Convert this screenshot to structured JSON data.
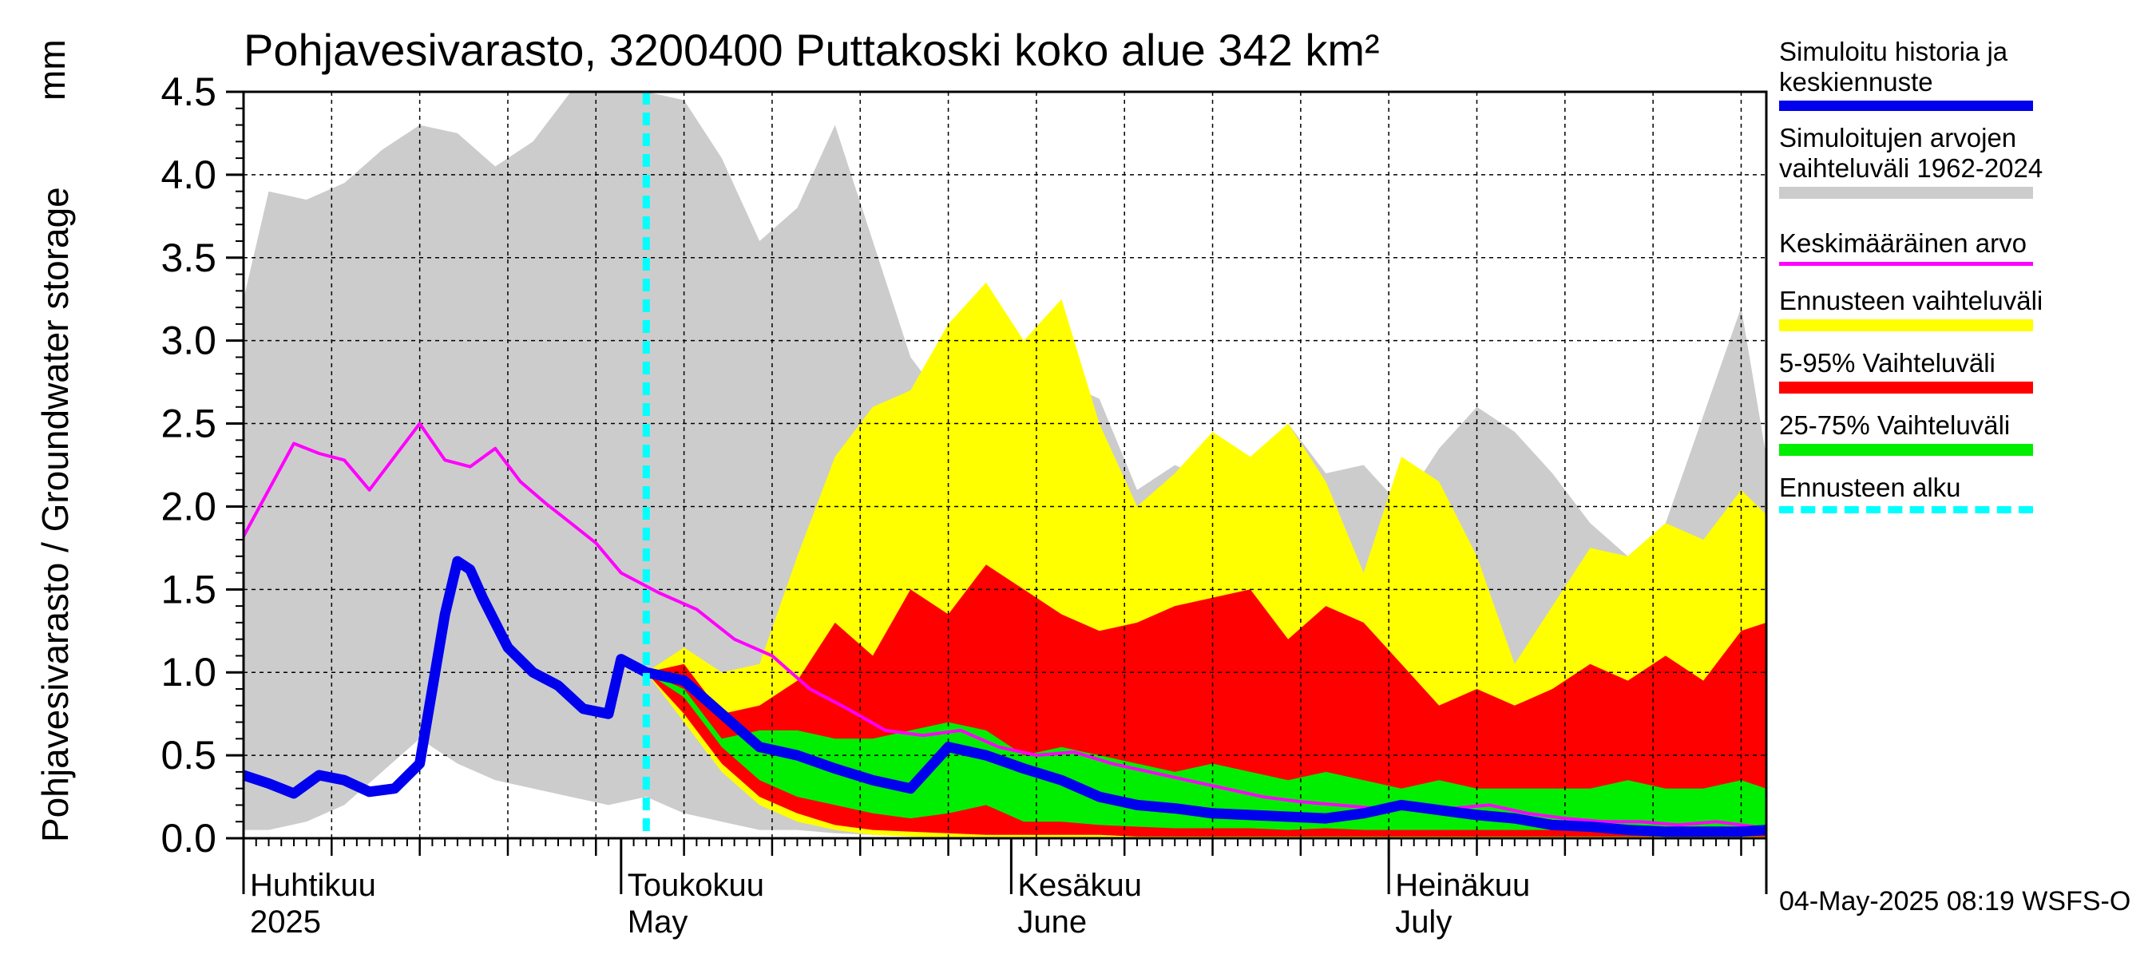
{
  "title": "Pohjavesivarasto, 3200400 Puttakoski koko alue 342 km²",
  "unit_label": "mm",
  "y_axis_label": "Pohjavesivarasto / Groundwater storage",
  "footer": "04-May-2025 08:19 WSFS-O",
  "legend": [
    {
      "label": "Simuloitu historia ja\nkeskiennuste",
      "color": "#0000ee",
      "style": "thick"
    },
    {
      "label": "Simuloitujen arvojen\nvaihteluväli 1962-2024",
      "color": "#cccccc",
      "style": "band"
    },
    {
      "label": "Keskimääräinen arvo",
      "color": "#ff00ff",
      "style": "thin"
    },
    {
      "label": "Ennusteen vaihteluväli",
      "color": "#ffff00",
      "style": "band"
    },
    {
      "label": "5-95% Vaihteluväli",
      "color": "#ff0000",
      "style": "band"
    },
    {
      "label": "25-75% Vaihteluväli",
      "color": "#00ee00",
      "style": "band"
    },
    {
      "label": "Ennusteen alku",
      "color": "#00ffff",
      "style": "dashed"
    }
  ],
  "chart_data": {
    "type": "area",
    "x_axis": "date",
    "x_start": "2025-04-01",
    "x_end": "2025-07-31",
    "ylim": [
      0.0,
      4.5
    ],
    "yticks": [
      "0.0",
      "0.5",
      "1.0",
      "1.5",
      "2.0",
      "2.5",
      "3.0",
      "3.5",
      "4.0",
      "4.5"
    ],
    "grid": true,
    "month_labels": [
      {
        "fi": "Huhtikuu",
        "en": "2025",
        "date": "2025-04-01"
      },
      {
        "fi": "Toukokuu",
        "en": "May",
        "date": "2025-05-01"
      },
      {
        "fi": "Kesäkuu",
        "en": "June",
        "date": "2025-06-01"
      },
      {
        "fi": "Heinäkuu",
        "en": "July",
        "date": "2025-07-01"
      }
    ],
    "forecast_start": "2025-05-03",
    "series": [
      {
        "name": "Simuloitujen arvojen vaihteluväli 1962-2024",
        "kind": "band",
        "color": "#cccccc",
        "x": [
          "2025-04-01",
          "2025-04-03",
          "2025-04-06",
          "2025-04-09",
          "2025-04-12",
          "2025-04-15",
          "2025-04-18",
          "2025-04-21",
          "2025-04-24",
          "2025-04-27",
          "2025-04-30",
          "2025-05-03",
          "2025-05-06",
          "2025-05-09",
          "2025-05-12",
          "2025-05-15",
          "2025-05-18",
          "2025-05-21",
          "2025-05-24",
          "2025-05-27",
          "2025-05-30",
          "2025-06-02",
          "2025-06-05",
          "2025-06-08",
          "2025-06-11",
          "2025-06-14",
          "2025-06-17",
          "2025-06-20",
          "2025-06-23",
          "2025-06-26",
          "2025-06-29",
          "2025-07-02",
          "2025-07-05",
          "2025-07-08",
          "2025-07-11",
          "2025-07-14",
          "2025-07-17",
          "2025-07-20",
          "2025-07-23",
          "2025-07-26",
          "2025-07-29",
          "2025-07-31"
        ],
        "upper": [
          3.25,
          3.9,
          3.85,
          3.95,
          4.15,
          4.3,
          4.25,
          4.05,
          4.2,
          4.5,
          4.5,
          4.5,
          4.45,
          4.1,
          3.6,
          3.8,
          4.3,
          3.6,
          2.9,
          2.6,
          2.4,
          2.2,
          2.75,
          2.65,
          2.1,
          2.25,
          2.15,
          2.0,
          2.5,
          2.2,
          2.25,
          2.0,
          2.35,
          2.6,
          2.45,
          2.2,
          1.9,
          1.7,
          1.9,
          2.55,
          3.2,
          2.3
        ],
        "lower": [
          0.05,
          0.05,
          0.1,
          0.2,
          0.4,
          0.6,
          0.45,
          0.35,
          0.3,
          0.25,
          0.2,
          0.25,
          0.15,
          0.1,
          0.05,
          0.05,
          0.03,
          0.02,
          0.02,
          0.01,
          0.01,
          0.01,
          0.0,
          0.0,
          0.0,
          0.0,
          0.0,
          0.0,
          0.0,
          0.0,
          0.0,
          0.0,
          0.0,
          0.0,
          0.0,
          0.0,
          0.0,
          0.0,
          0.0,
          0.0,
          0.0,
          0.0
        ]
      },
      {
        "name": "Ennusteen vaihteluväli",
        "kind": "band",
        "color": "#ffff00",
        "x": [
          "2025-05-03",
          "2025-05-06",
          "2025-05-09",
          "2025-05-12",
          "2025-05-15",
          "2025-05-18",
          "2025-05-21",
          "2025-05-24",
          "2025-05-27",
          "2025-05-30",
          "2025-06-02",
          "2025-06-05",
          "2025-06-08",
          "2025-06-11",
          "2025-06-14",
          "2025-06-17",
          "2025-06-20",
          "2025-06-23",
          "2025-06-26",
          "2025-06-29",
          "2025-07-02",
          "2025-07-05",
          "2025-07-08",
          "2025-07-11",
          "2025-07-14",
          "2025-07-17",
          "2025-07-20",
          "2025-07-23",
          "2025-07-26",
          "2025-07-29",
          "2025-07-31"
        ],
        "upper": [
          1.0,
          1.15,
          1.0,
          1.05,
          1.7,
          2.3,
          2.6,
          2.7,
          3.1,
          3.35,
          3.0,
          3.25,
          2.5,
          2.0,
          2.2,
          2.45,
          2.3,
          2.5,
          2.15,
          1.6,
          2.3,
          2.15,
          1.7,
          1.05,
          1.4,
          1.75,
          1.7,
          1.9,
          1.8,
          2.1,
          1.95
        ],
        "lower": [
          1.0,
          0.7,
          0.4,
          0.2,
          0.1,
          0.05,
          0.02,
          0.01,
          0.0,
          0.0,
          0.0,
          0.0,
          0.0,
          0.0,
          0.0,
          0.0,
          0.0,
          0.0,
          0.0,
          0.0,
          0.0,
          0.0,
          0.0,
          0.0,
          0.0,
          0.0,
          0.0,
          0.0,
          0.0,
          0.0,
          0.0
        ]
      },
      {
        "name": "5-95% Vaihteluväli",
        "kind": "band",
        "color": "#ff0000",
        "x": [
          "2025-05-03",
          "2025-05-06",
          "2025-05-09",
          "2025-05-12",
          "2025-05-15",
          "2025-05-18",
          "2025-05-21",
          "2025-05-24",
          "2025-05-27",
          "2025-05-30",
          "2025-06-02",
          "2025-06-05",
          "2025-06-08",
          "2025-06-11",
          "2025-06-14",
          "2025-06-17",
          "2025-06-20",
          "2025-06-23",
          "2025-06-26",
          "2025-06-29",
          "2025-07-02",
          "2025-07-05",
          "2025-07-08",
          "2025-07-11",
          "2025-07-14",
          "2025-07-17",
          "2025-07-20",
          "2025-07-23",
          "2025-07-26",
          "2025-07-29",
          "2025-07-31"
        ],
        "upper": [
          1.0,
          1.05,
          0.75,
          0.8,
          0.95,
          1.3,
          1.1,
          1.5,
          1.35,
          1.65,
          1.5,
          1.35,
          1.25,
          1.3,
          1.4,
          1.45,
          1.5,
          1.2,
          1.4,
          1.3,
          1.05,
          0.8,
          0.9,
          0.8,
          0.9,
          1.05,
          0.95,
          1.1,
          0.95,
          1.25,
          1.3
        ],
        "lower": [
          1.0,
          0.75,
          0.45,
          0.25,
          0.15,
          0.08,
          0.05,
          0.04,
          0.03,
          0.02,
          0.02,
          0.02,
          0.02,
          0.01,
          0.01,
          0.01,
          0.01,
          0.01,
          0.01,
          0.01,
          0.01,
          0.01,
          0.01,
          0.01,
          0.01,
          0.01,
          0.01,
          0.01,
          0.01,
          0.01,
          0.01
        ]
      },
      {
        "name": "25-75% Vaihteluväli",
        "kind": "band",
        "color": "#00ee00",
        "x": [
          "2025-05-03",
          "2025-05-06",
          "2025-05-09",
          "2025-05-12",
          "2025-05-15",
          "2025-05-18",
          "2025-05-21",
          "2025-05-24",
          "2025-05-27",
          "2025-05-30",
          "2025-06-02",
          "2025-06-05",
          "2025-06-08",
          "2025-06-11",
          "2025-06-14",
          "2025-06-17",
          "2025-06-20",
          "2025-06-23",
          "2025-06-26",
          "2025-06-29",
          "2025-07-02",
          "2025-07-05",
          "2025-07-08",
          "2025-07-11",
          "2025-07-14",
          "2025-07-17",
          "2025-07-20",
          "2025-07-23",
          "2025-07-26",
          "2025-07-29",
          "2025-07-31"
        ],
        "upper": [
          1.0,
          0.9,
          0.6,
          0.65,
          0.65,
          0.6,
          0.6,
          0.65,
          0.7,
          0.65,
          0.5,
          0.55,
          0.5,
          0.45,
          0.4,
          0.45,
          0.4,
          0.35,
          0.4,
          0.35,
          0.3,
          0.35,
          0.3,
          0.3,
          0.3,
          0.3,
          0.35,
          0.3,
          0.3,
          0.35,
          0.3
        ],
        "lower": [
          1.0,
          0.85,
          0.55,
          0.35,
          0.25,
          0.2,
          0.15,
          0.12,
          0.15,
          0.2,
          0.1,
          0.1,
          0.08,
          0.07,
          0.06,
          0.06,
          0.06,
          0.05,
          0.06,
          0.05,
          0.05,
          0.05,
          0.05,
          0.05,
          0.05,
          0.05,
          0.05,
          0.05,
          0.05,
          0.05,
          0.05
        ]
      },
      {
        "name": "Keskimääräinen arvo",
        "kind": "line",
        "color": "#ff00ff",
        "width": 4,
        "x": [
          "2025-04-01",
          "2025-04-03",
          "2025-04-05",
          "2025-04-07",
          "2025-04-09",
          "2025-04-11",
          "2025-04-13",
          "2025-04-15",
          "2025-04-17",
          "2025-04-19",
          "2025-04-21",
          "2025-04-23",
          "2025-04-25",
          "2025-04-27",
          "2025-04-29",
          "2025-05-01",
          "2025-05-04",
          "2025-05-07",
          "2025-05-10",
          "2025-05-13",
          "2025-05-16",
          "2025-05-19",
          "2025-05-22",
          "2025-05-25",
          "2025-05-28",
          "2025-05-31",
          "2025-06-03",
          "2025-06-06",
          "2025-06-09",
          "2025-06-12",
          "2025-06-15",
          "2025-06-18",
          "2025-06-21",
          "2025-06-24",
          "2025-06-27",
          "2025-06-30",
          "2025-07-03",
          "2025-07-06",
          "2025-07-09",
          "2025-07-12",
          "2025-07-15",
          "2025-07-18",
          "2025-07-21",
          "2025-07-24",
          "2025-07-27",
          "2025-07-31"
        ],
        "values": [
          1.82,
          2.1,
          2.38,
          2.32,
          2.28,
          2.1,
          2.3,
          2.5,
          2.28,
          2.24,
          2.35,
          2.15,
          2.02,
          1.9,
          1.78,
          1.6,
          1.48,
          1.38,
          1.2,
          1.1,
          0.9,
          0.78,
          0.65,
          0.62,
          0.65,
          0.55,
          0.5,
          0.52,
          0.45,
          0.4,
          0.35,
          0.3,
          0.25,
          0.22,
          0.2,
          0.18,
          0.2,
          0.18,
          0.2,
          0.15,
          0.12,
          0.1,
          0.1,
          0.08,
          0.1,
          0.06
        ]
      },
      {
        "name": "Simuloitu historia ja keskiennuste",
        "kind": "line",
        "color": "#0000ee",
        "width": 13,
        "x": [
          "2025-04-01",
          "2025-04-03",
          "2025-04-05",
          "2025-04-07",
          "2025-04-09",
          "2025-04-11",
          "2025-04-13",
          "2025-04-15",
          "2025-04-17",
          "2025-04-18",
          "2025-04-19",
          "2025-04-20",
          "2025-04-21",
          "2025-04-22",
          "2025-04-24",
          "2025-04-26",
          "2025-04-28",
          "2025-04-30",
          "2025-05-01",
          "2025-05-03",
          "2025-05-06",
          "2025-05-09",
          "2025-05-12",
          "2025-05-15",
          "2025-05-18",
          "2025-05-21",
          "2025-05-24",
          "2025-05-27",
          "2025-05-30",
          "2025-06-02",
          "2025-06-05",
          "2025-06-08",
          "2025-06-11",
          "2025-06-14",
          "2025-06-17",
          "2025-06-20",
          "2025-06-23",
          "2025-06-26",
          "2025-06-29",
          "2025-07-02",
          "2025-07-05",
          "2025-07-08",
          "2025-07-11",
          "2025-07-14",
          "2025-07-17",
          "2025-07-20",
          "2025-07-23",
          "2025-07-26",
          "2025-07-29",
          "2025-07-31"
        ],
        "values": [
          0.38,
          0.33,
          0.27,
          0.38,
          0.35,
          0.28,
          0.3,
          0.45,
          1.35,
          1.67,
          1.62,
          1.45,
          1.3,
          1.15,
          1.0,
          0.92,
          0.78,
          0.75,
          1.08,
          1.0,
          0.95,
          0.75,
          0.55,
          0.5,
          0.42,
          0.35,
          0.3,
          0.55,
          0.5,
          0.42,
          0.35,
          0.25,
          0.2,
          0.18,
          0.15,
          0.14,
          0.13,
          0.12,
          0.15,
          0.2,
          0.17,
          0.14,
          0.12,
          0.08,
          0.07,
          0.05,
          0.04,
          0.04,
          0.04,
          0.05
        ]
      }
    ]
  }
}
